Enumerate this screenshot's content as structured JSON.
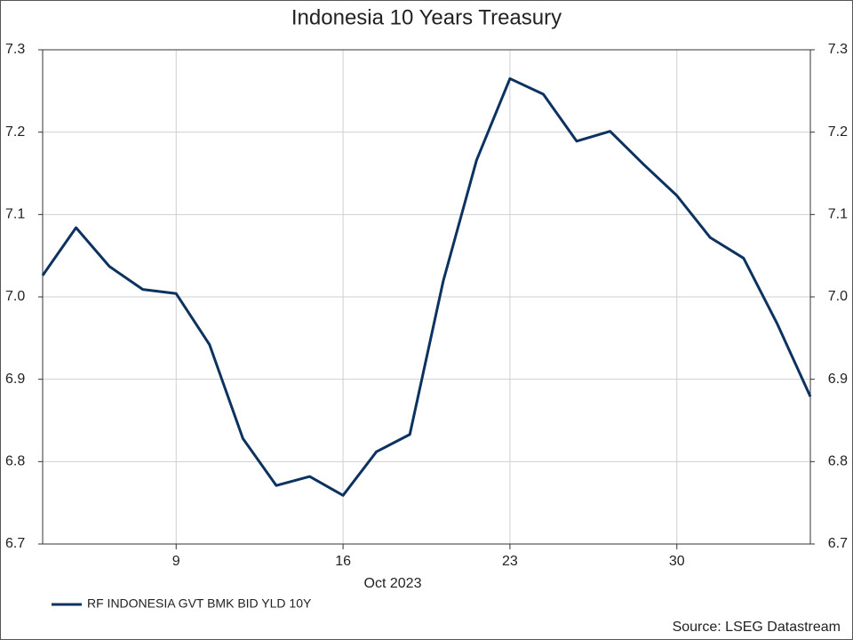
{
  "chart_data": {
    "type": "line",
    "title": "Indonesia 10 Years Treasury",
    "x_label": "Oct 2023",
    "source": "Source: LSEG Datastream",
    "x": [
      0,
      1,
      2,
      3,
      4,
      5,
      6,
      7,
      8,
      9,
      10,
      11,
      12,
      13,
      14,
      15,
      16,
      17,
      18,
      19,
      20,
      21,
      22,
      23
    ],
    "xlim": [
      0,
      23
    ],
    "xticks": [
      {
        "value": 4,
        "label": "9"
      },
      {
        "value": 9,
        "label": "16"
      },
      {
        "value": 14,
        "label": "23"
      },
      {
        "value": 19,
        "label": "30"
      }
    ],
    "ylim": [
      6.7,
      7.3
    ],
    "yticks": [
      6.7,
      6.8,
      6.9,
      {
        "value": 7,
        "label": "7.0"
      },
      7.1,
      7.2,
      7.3
    ],
    "y2lim": [
      6.7,
      7.3
    ],
    "y2ticks": [
      6.7,
      6.8,
      6.9,
      {
        "value": 7,
        "label": "7.0"
      },
      7.1,
      7.2,
      7.3
    ],
    "grid": true,
    "series": [
      {
        "name": "RF INDONESIA GVT BMK BID YLD 10Y",
        "color": "#0c3260",
        "values": [
          7.026,
          7.084,
          7.037,
          7.009,
          7.004,
          6.942,
          6.828,
          6.771,
          6.782,
          6.759,
          6.812,
          6.833,
          7.019,
          7.166,
          7.265,
          7.246,
          7.189,
          7.201,
          7.161,
          7.123,
          7.072,
          7.047,
          6.968,
          6.879
        ]
      }
    ]
  }
}
